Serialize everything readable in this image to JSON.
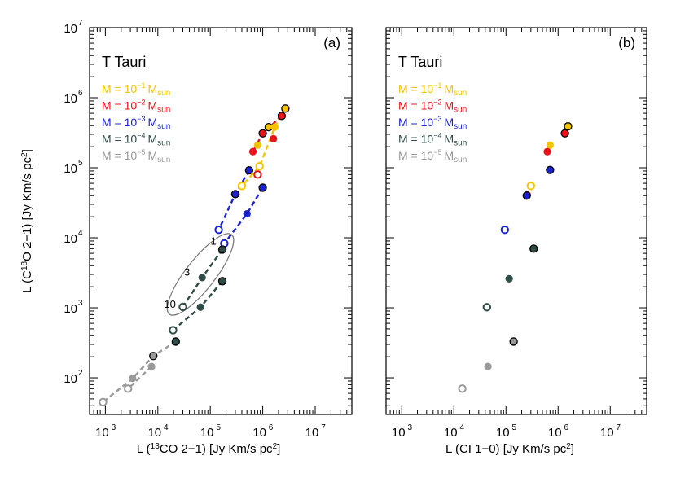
{
  "chart_data": [
    {
      "type": "scatter",
      "panel_label": "(a)",
      "title": "T Tauri",
      "xlabel_parts": [
        "L (",
        "13",
        "CO 2−1) [Jy Km/s pc",
        "2",
        "]"
      ],
      "ylabel_parts": [
        "L (C",
        "18",
        "O 2−1) [Jy Km/s pc",
        "2",
        "]"
      ],
      "xscale": "log",
      "yscale": "log",
      "xlim": [
        500,
        50000000
      ],
      "ylim": [
        30,
        10000000
      ],
      "xticks": [
        {
          "base": "10",
          "exp": "3"
        },
        {
          "base": "10",
          "exp": "4"
        },
        {
          "base": "10",
          "exp": "5"
        },
        {
          "base": "10",
          "exp": "6"
        },
        {
          "base": "10",
          "exp": "7"
        }
      ],
      "yticks": [
        {
          "base": "10",
          "exp": "2"
        },
        {
          "base": "10",
          "exp": "3"
        },
        {
          "base": "10",
          "exp": "4"
        },
        {
          "base": "10",
          "exp": "5"
        },
        {
          "base": "10",
          "exp": "6"
        },
        {
          "base": "10",
          "exp": "7"
        }
      ],
      "legend": [
        {
          "text": "M = 10",
          "exp": "−1",
          "unit": "M",
          "sub": "sun",
          "color": "#f5c400"
        },
        {
          "text": "M = 10",
          "exp": "−2",
          "unit": "M",
          "sub": "sun",
          "color": "#e8141a"
        },
        {
          "text": "M = 10",
          "exp": "−3",
          "unit": "M",
          "sub": "sun",
          "color": "#1a22cc"
        },
        {
          "text": "M = 10",
          "exp": "−4",
          "unit": "M",
          "sub": "sun",
          "color": "#2f4c48"
        },
        {
          "text": "M = 10",
          "exp": "−5",
          "unit": "M",
          "sub": "sun",
          "color": "#9a9a9a"
        }
      ],
      "annotations": [
        {
          "text": "1",
          "x": 115000,
          "y": 8000
        },
        {
          "text": "3",
          "x": 36000,
          "y": 2900
        },
        {
          "text": "10",
          "x": 17000,
          "y": 1000
        }
      ],
      "ellipse": {
        "x": 65000,
        "y": 3000,
        "note": "encircles 1, 3, 10 cases"
      },
      "series": [
        {
          "name": "M = 1e-1",
          "color": "#f5c400",
          "points": [
            {
              "x": 2700000,
              "y": 700000,
              "style": "filled-black"
            },
            {
              "x": 1300000,
              "y": 380000,
              "style": "filled-black"
            },
            {
              "x": 1700000,
              "y": 380000,
              "style": "filled"
            },
            {
              "x": 800000,
              "y": 210000,
              "style": "filled"
            },
            {
              "x": 870000,
              "y": 105000,
              "style": "open"
            },
            {
              "x": 400000,
              "y": 55000,
              "style": "open"
            }
          ],
          "lines": [
            [
              [
                2700000,
                700000
              ],
              [
                1700000,
                380000
              ],
              [
                870000,
                105000
              ],
              [
                400000,
                55000
              ]
            ]
          ]
        },
        {
          "name": "M = 1e-2",
          "color": "#e8141a",
          "points": [
            {
              "x": 2300000,
              "y": 550000,
              "style": "filled-black"
            },
            {
              "x": 1000000,
              "y": 310000,
              "style": "filled-black"
            },
            {
              "x": 1600000,
              "y": 260000,
              "style": "filled"
            },
            {
              "x": 650000,
              "y": 170000,
              "style": "filled"
            },
            {
              "x": 800000,
              "y": 80000,
              "style": "open"
            },
            {
              "x": 310000,
              "y": 42000,
              "style": "filled"
            }
          ],
          "lines": [
            [
              [
                2300000,
                550000
              ],
              [
                1000000,
                310000
              ],
              [
                650000,
                170000
              ]
            ]
          ]
        },
        {
          "name": "M = 1e-3",
          "color": "#1a22cc",
          "points": [
            {
              "x": 550000,
              "y": 92000,
              "style": "filled-black"
            },
            {
              "x": 300000,
              "y": 42000,
              "style": "filled-black"
            },
            {
              "x": 1000000,
              "y": 52000,
              "style": "filled-black"
            },
            {
              "x": 500000,
              "y": 22000,
              "style": "filled"
            },
            {
              "x": 145000,
              "y": 13000,
              "style": "open"
            },
            {
              "x": 185000,
              "y": 8300,
              "style": "open"
            }
          ],
          "lines": [
            [
              [
                550000,
                92000
              ],
              [
                300000,
                42000
              ],
              [
                145000,
                13000
              ]
            ],
            [
              [
                1000000,
                52000
              ],
              [
                500000,
                22000
              ],
              [
                185000,
                8300
              ]
            ]
          ]
        },
        {
          "name": "M = 1e-4",
          "color": "#2f4c48",
          "points": [
            {
              "x": 170000,
              "y": 6800,
              "style": "filled-black"
            },
            {
              "x": 70000,
              "y": 2700,
              "style": "filled"
            },
            {
              "x": 170000,
              "y": 2400,
              "style": "filled-black"
            },
            {
              "x": 30000,
              "y": 1030,
              "style": "open"
            },
            {
              "x": 65000,
              "y": 1020,
              "style": "filled"
            },
            {
              "x": 19500,
              "y": 480,
              "style": "open"
            },
            {
              "x": 22000,
              "y": 330,
              "style": "filled-black"
            }
          ],
          "lines": [
            [
              [
                170000,
                6800
              ],
              [
                70000,
                2700
              ],
              [
                30000,
                1030
              ]
            ],
            [
              [
                170000,
                2400
              ],
              [
                65000,
                1020
              ],
              [
                19500,
                480
              ]
            ]
          ]
        },
        {
          "name": "M = 1e-5",
          "color": "#9a9a9a",
          "points": [
            {
              "x": 8200,
              "y": 205,
              "style": "filled-black"
            },
            {
              "x": 7600,
              "y": 145,
              "style": "filled"
            },
            {
              "x": 3300,
              "y": 98,
              "style": "filled"
            },
            {
              "x": 2700,
              "y": 70,
              "style": "open"
            },
            {
              "x": 900,
              "y": 45,
              "style": "open"
            }
          ],
          "lines": [
            [
              [
                22000,
                330
              ],
              [
                8200,
                205
              ],
              [
                3300,
                98
              ],
              [
                900,
                45
              ]
            ],
            [
              [
                7600,
                145
              ],
              [
                2700,
                70
              ]
            ]
          ]
        }
      ]
    },
    {
      "type": "scatter",
      "panel_label": "(b)",
      "title": "T Tauri",
      "xlabel_parts": [
        "L (CI 1−0) [Jy Km/s pc",
        "2",
        "]"
      ],
      "ylabel_parts": [],
      "xscale": "log",
      "yscale": "log",
      "xlim": [
        500,
        50000000
      ],
      "ylim": [
        30,
        10000000
      ],
      "xticks": [
        {
          "base": "10",
          "exp": "3"
        },
        {
          "base": "10",
          "exp": "4"
        },
        {
          "base": "10",
          "exp": "5"
        },
        {
          "base": "10",
          "exp": "6"
        },
        {
          "base": "10",
          "exp": "7"
        }
      ],
      "yticks": [],
      "legend": [
        {
          "text": "M = 10",
          "exp": "−1",
          "unit": "M",
          "sub": "sun",
          "color": "#f5c400"
        },
        {
          "text": "M = 10",
          "exp": "−2",
          "unit": "M",
          "sub": "sun",
          "color": "#e8141a"
        },
        {
          "text": "M = 10",
          "exp": "−3",
          "unit": "M",
          "sub": "sun",
          "color": "#1a22cc"
        },
        {
          "text": "M = 10",
          "exp": "−4",
          "unit": "M",
          "sub": "sun",
          "color": "#2f4c48"
        },
        {
          "text": "M = 10",
          "exp": "−5",
          "unit": "M",
          "sub": "sun",
          "color": "#9a9a9a"
        }
      ],
      "series": [
        {
          "name": "M = 1e-1",
          "color": "#f5c400",
          "points": [
            {
              "x": 1550000,
              "y": 390000,
              "style": "filled-black"
            },
            {
              "x": 700000,
              "y": 210000,
              "style": "filled"
            },
            {
              "x": 300000,
              "y": 55000,
              "style": "open"
            }
          ]
        },
        {
          "name": "M = 1e-2",
          "color": "#e8141a",
          "points": [
            {
              "x": 1350000,
              "y": 310000,
              "style": "filled-black"
            },
            {
              "x": 620000,
              "y": 170000,
              "style": "filled"
            },
            {
              "x": 255000,
              "y": 41000,
              "style": "filled"
            }
          ]
        },
        {
          "name": "M = 1e-3",
          "color": "#1a22cc",
          "points": [
            {
              "x": 700000,
              "y": 93000,
              "style": "filled-black"
            },
            {
              "x": 250000,
              "y": 40000,
              "style": "filled-black"
            },
            {
              "x": 95000,
              "y": 13000,
              "style": "open"
            }
          ]
        },
        {
          "name": "M = 1e-4",
          "color": "#2f4c48",
          "points": [
            {
              "x": 340000,
              "y": 7000,
              "style": "filled-black"
            },
            {
              "x": 115000,
              "y": 2600,
              "style": "filled"
            },
            {
              "x": 43000,
              "y": 1020,
              "style": "open"
            }
          ]
        },
        {
          "name": "M = 1e-5",
          "color": "#9a9a9a",
          "points": [
            {
              "x": 140000,
              "y": 330,
              "style": "filled-black"
            },
            {
              "x": 45000,
              "y": 145,
              "style": "filled"
            },
            {
              "x": 14500,
              "y": 70,
              "style": "open"
            }
          ]
        }
      ]
    }
  ]
}
